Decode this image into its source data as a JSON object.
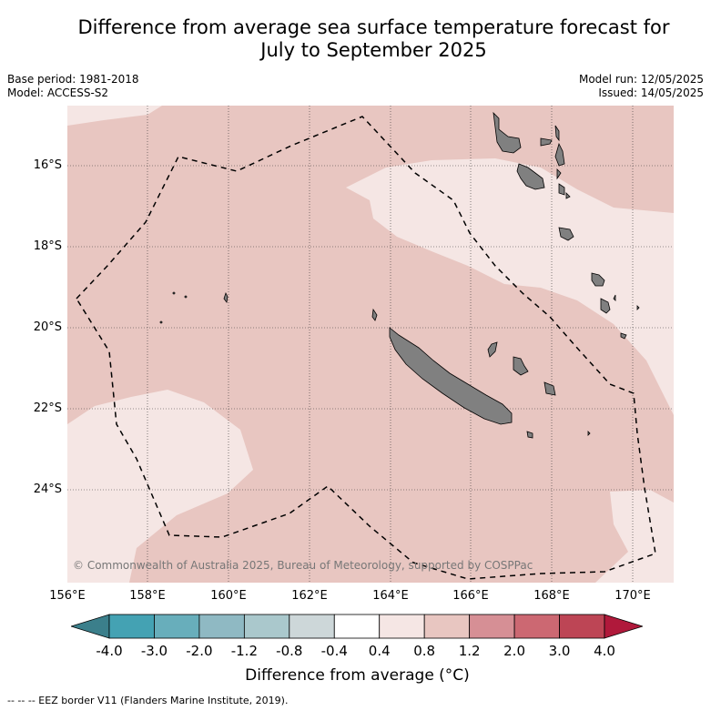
{
  "title": {
    "line1": "Difference from average sea surface temperature forecast for",
    "line2": "July to September 2025"
  },
  "meta": {
    "base_period": "Base period: 1981-2018",
    "model": "Model: ACCESS-S2",
    "model_run": "Model run: 12/05/2025",
    "issued": "Issued: 14/05/2025"
  },
  "map": {
    "lat_labels": [
      "16°S",
      "18°S",
      "20°S",
      "22°S",
      "24°S"
    ],
    "lon_labels": [
      "156°E",
      "158°E",
      "160°E",
      "162°E",
      "164°E",
      "166°E",
      "168°E",
      "170°E"
    ],
    "credit": "© Commonwealth of Australia 2025, Bureau of Meteorology, supported by COSPPac",
    "colors": {
      "anomaly_0_4_to_0_8": "#f5e6e4",
      "anomaly_0_8_to_1_2": "#e8c6c1",
      "land": "#808080",
      "eez_border": "#000000"
    }
  },
  "colorbar": {
    "labels": [
      "-4.0",
      "-3.0",
      "-2.0",
      "-1.2",
      "-0.8",
      "-0.4",
      "0.4",
      "0.8",
      "1.2",
      "2.0",
      "3.0",
      "4.0"
    ],
    "colors": [
      "#3b7f8b",
      "#44a2b3",
      "#68aebb",
      "#8fb9c3",
      "#aac8cc",
      "#cdd7d9",
      "#ffffff",
      "#f5e6e4",
      "#e8c6c1",
      "#d68f95",
      "#cc6872",
      "#bd4555",
      "#b0193b"
    ],
    "title": "Difference from average (°C)"
  },
  "footnote": "-- -- -- EEZ border V11 (Flanders Marine Institute, 2019)."
}
